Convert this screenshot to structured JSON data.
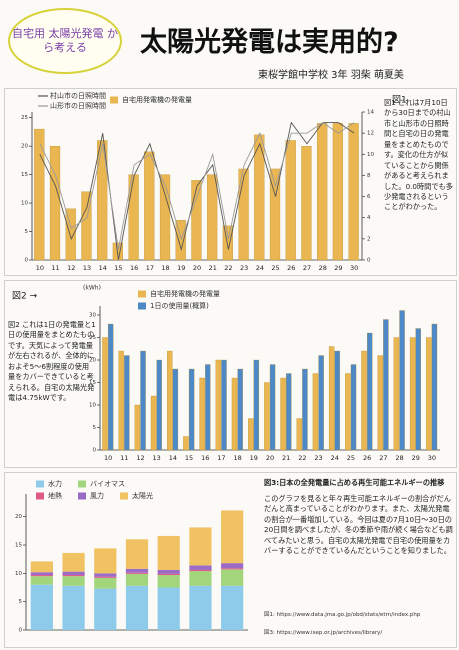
{
  "header": {
    "bubble": "自宅用 太陽光発電 から考える",
    "title": "太陽光発電は実用的?",
    "author": "東桜学館中学校 3年 羽柴 萌夏美"
  },
  "notes": {
    "fig1": "図1 これは7月10日から30日までの村山市と山形市の日照時間と自宅の日の発電量をまとめたものです。変化の仕方が似ていることから関係があると考えられました。0.0時間でも多少発電されるということがわかった。",
    "fig2": "図2 これは1日の発電量と1日の使用量をまとめたものです。天気によって発電量が左右されるが、全体的におよそ5〜6割程度の使用量をカバーできていると考えられる。自宅の太陽光発電は4.75kWです。",
    "fig3_heading": "図3:日本の全発電量に占める再生可能エネルギーの推移",
    "fig3": "このグラフを見ると年々再生可能エネルギーの割合がだんだんと高まっていることがわかります。また、太陽光発電の割合が一番増加している。今回は夏の7月10日〜30日の20日間を調べましたが、冬の季節や雨が続く場合なども調べてみたいと思う。自宅の太陽光発電で自宅の使用量をカバーすることができているんだということを知りました。",
    "ref1": "図1: https://www.data.jma.go.jp/obd/stats/etrn/index.php",
    "ref3": "図3: https://www.isep.or.jp/archives/library/"
  },
  "chart_data": [
    {
      "type": "bar",
      "figure_label": "図1",
      "categories": [
        "10",
        "11",
        "12",
        "13",
        "14",
        "15",
        "16",
        "17",
        "18",
        "19",
        "20",
        "21",
        "22",
        "23",
        "24",
        "25",
        "26",
        "27",
        "28",
        "29",
        "30"
      ],
      "series": [
        {
          "name": "自宅用発電機の発電量",
          "color": "#eab651",
          "values": [
            23,
            20,
            9,
            12,
            21,
            3,
            15,
            19,
            15,
            7,
            14,
            15,
            6,
            16,
            22,
            16,
            21,
            20,
            24,
            24,
            24
          ]
        },
        {
          "name": "村山市の日照時間",
          "type": "line",
          "axis": "y2",
          "color": "#555555",
          "values": [
            10,
            7,
            2,
            5,
            12,
            0,
            8,
            11,
            6,
            1,
            7,
            9,
            1,
            8,
            11,
            6,
            13,
            11,
            13,
            13,
            12
          ]
        },
        {
          "name": "山形市の日照時間",
          "type": "line",
          "axis": "y2",
          "color": "#9a9a9a",
          "values": [
            11,
            8,
            3,
            4,
            11,
            1,
            9,
            10,
            7,
            2,
            6,
            10,
            2,
            9,
            12,
            7,
            12,
            12,
            13,
            12,
            13
          ]
        }
      ],
      "ylim": [
        0,
        26
      ],
      "yticks": [
        0,
        5,
        10,
        15,
        20,
        25
      ],
      "y2lim": [
        0,
        14
      ],
      "y2ticks": [
        0,
        2,
        4,
        6,
        8,
        10,
        12,
        14
      ]
    },
    {
      "type": "bar",
      "figure_label": "図2 →",
      "y_label": "(kWh)",
      "categories": [
        "10",
        "11",
        "12",
        "13",
        "14",
        "15",
        "16",
        "17",
        "18",
        "19",
        "20",
        "21",
        "22",
        "23",
        "24",
        "25",
        "26",
        "27",
        "28",
        "29",
        "30"
      ],
      "series": [
        {
          "name": "自宅用発電機の発電量",
          "color": "#eab651",
          "values": [
            25,
            22,
            10,
            12,
            22,
            3,
            16,
            20,
            16,
            7,
            15,
            16,
            7,
            17,
            23,
            17,
            22,
            21,
            25,
            25,
            25
          ]
        },
        {
          "name": "1日の使用量(概算)",
          "color": "#4d89c6",
          "values": [
            28,
            21,
            22,
            20,
            18,
            18,
            19,
            20,
            18,
            20,
            19,
            17,
            18,
            21,
            22,
            19,
            26,
            29,
            31,
            27,
            28
          ]
        }
      ],
      "ylim": [
        0,
        32
      ],
      "yticks": [
        0,
        5,
        10,
        15,
        20,
        25,
        30
      ]
    },
    {
      "type": "stacked_bar",
      "categories": [
        null,
        null,
        null,
        null,
        null,
        null,
        null
      ],
      "series": [
        {
          "name": "水力",
          "color": "#8ecbea",
          "values": [
            8.0,
            7.8,
            7.3,
            7.8,
            7.5,
            7.8,
            7.8
          ]
        },
        {
          "name": "バイオマス",
          "color": "#a3d57c",
          "values": [
            1.5,
            1.7,
            1.9,
            2.1,
            2.2,
            2.6,
            2.9
          ]
        },
        {
          "name": "地熱",
          "color": "#e05a8a",
          "values": [
            0.2,
            0.2,
            0.2,
            0.2,
            0.2,
            0.2,
            0.2
          ]
        },
        {
          "name": "風力",
          "color": "#9b6bc6",
          "values": [
            0.5,
            0.6,
            0.6,
            0.7,
            0.7,
            0.8,
            0.9
          ]
        },
        {
          "name": "太陽光",
          "color": "#f0c262",
          "values": [
            1.9,
            3.3,
            4.4,
            5.2,
            6.0,
            6.7,
            9.3
          ]
        }
      ],
      "ylim": [
        0,
        24
      ],
      "yticks": [
        0,
        5,
        10,
        15,
        20
      ]
    }
  ]
}
